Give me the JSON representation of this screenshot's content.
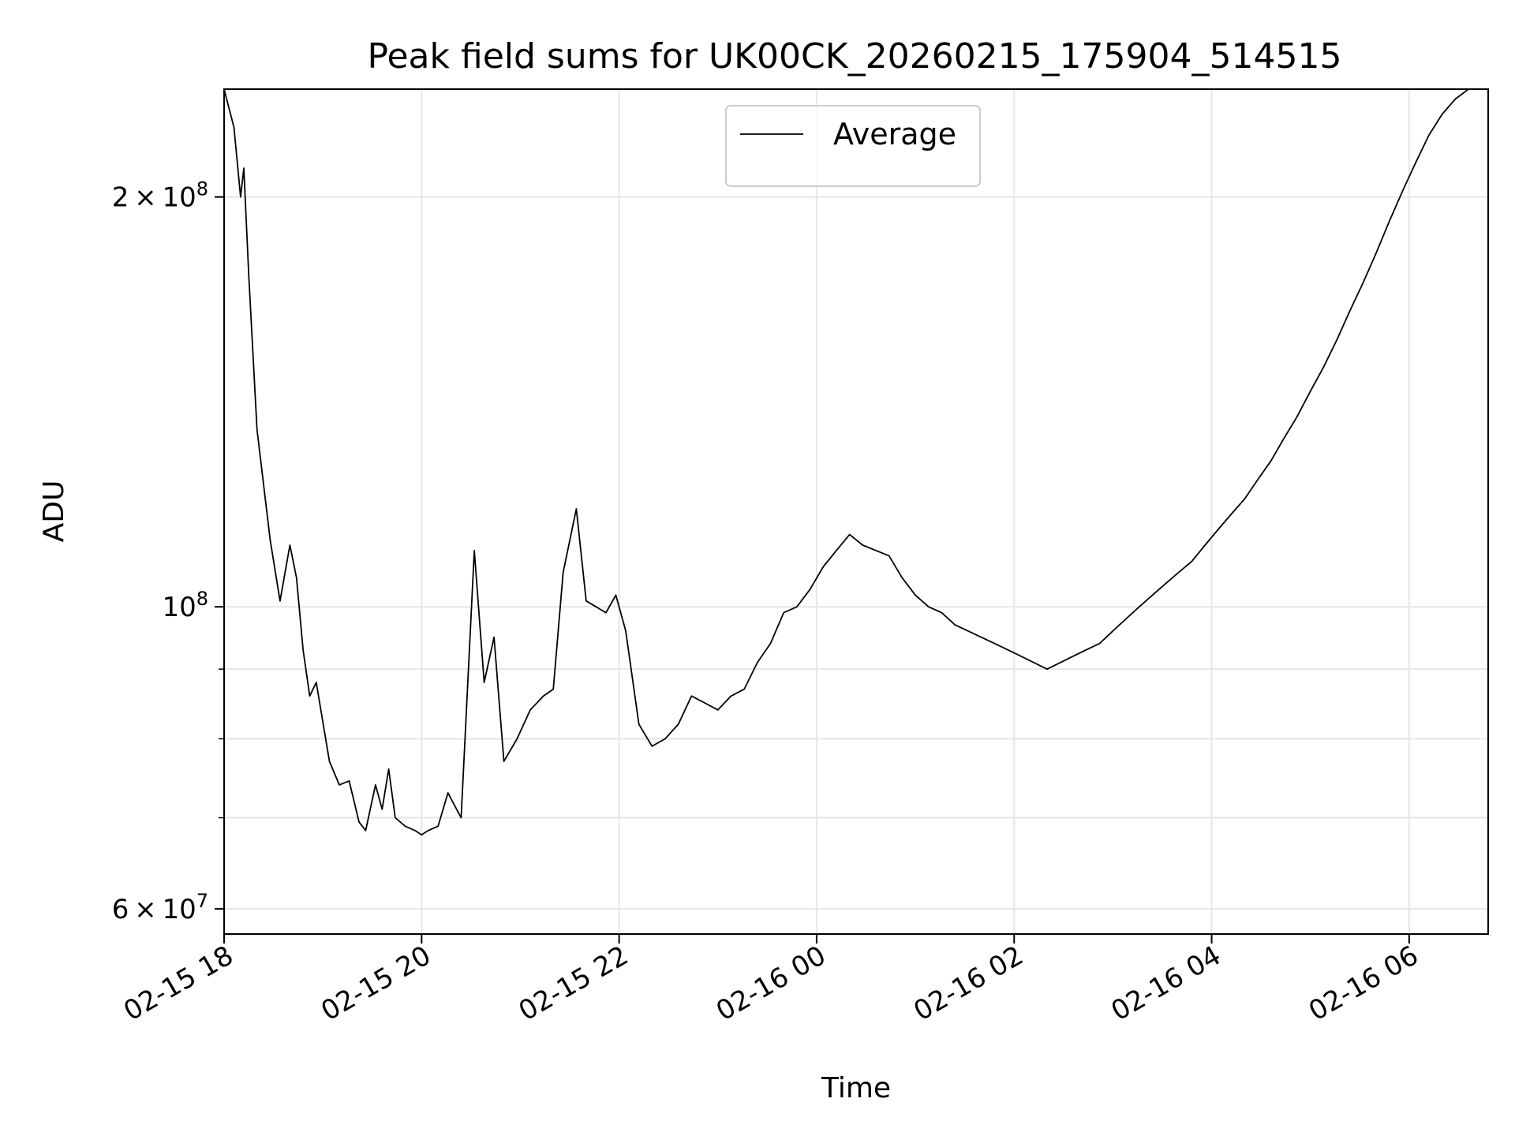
{
  "chart_data": {
    "type": "line",
    "title": "Peak field sums for UK00CK_20260215_175904_514515",
    "xlabel": "Time",
    "ylabel": "ADU",
    "y_scale": "log",
    "ylim": [
      57500000,
      240000000
    ],
    "xlim": [
      "2026-02-15 18:00",
      "2026-02-16 06:48"
    ],
    "grid": true,
    "legend_position": "upper center",
    "x_ticks": [
      {
        "t": "2026-02-15 18:00",
        "label": "02-15 18"
      },
      {
        "t": "2026-02-15 20:00",
        "label": "02-15 20"
      },
      {
        "t": "2026-02-15 22:00",
        "label": "02-15 22"
      },
      {
        "t": "2026-02-16 00:00",
        "label": "02-16 00"
      },
      {
        "t": "2026-02-16 02:00",
        "label": "02-16 02"
      },
      {
        "t": "2026-02-16 04:00",
        "label": "02-16 04"
      },
      {
        "t": "2026-02-16 06:00",
        "label": "02-16 06"
      }
    ],
    "y_ticks_major": [
      {
        "value": 60000000,
        "mantissa": "6",
        "exponent": "7"
      },
      {
        "value": 100000000,
        "mantissa": "",
        "exponent": "8"
      },
      {
        "value": 200000000,
        "mantissa": "2",
        "exponent": "8"
      }
    ],
    "y_ticks_minor": [
      70000000,
      80000000,
      90000000
    ],
    "series": [
      {
        "name": "Average",
        "color": "#000000",
        "points": [
          [
            "2026-02-15 18:00",
            240000000
          ],
          [
            "2026-02-15 18:06",
            225000000
          ],
          [
            "2026-02-15 18:10",
            200000000
          ],
          [
            "2026-02-15 18:12",
            210000000
          ],
          [
            "2026-02-15 18:15",
            175000000
          ],
          [
            "2026-02-15 18:20",
            135000000
          ],
          [
            "2026-02-15 18:28",
            112000000
          ],
          [
            "2026-02-15 18:34",
            101000000
          ],
          [
            "2026-02-15 18:40",
            111000000
          ],
          [
            "2026-02-15 18:44",
            105000000
          ],
          [
            "2026-02-15 18:48",
            93000000
          ],
          [
            "2026-02-15 18:52",
            86000000
          ],
          [
            "2026-02-15 18:56",
            88000000
          ],
          [
            "2026-02-15 19:04",
            77000000
          ],
          [
            "2026-02-15 19:10",
            74000000
          ],
          [
            "2026-02-15 19:16",
            74500000
          ],
          [
            "2026-02-15 19:22",
            69500000
          ],
          [
            "2026-02-15 19:26",
            68500000
          ],
          [
            "2026-02-15 19:32",
            74000000
          ],
          [
            "2026-02-15 19:36",
            71000000
          ],
          [
            "2026-02-15 19:40",
            76000000
          ],
          [
            "2026-02-15 19:44",
            70000000
          ],
          [
            "2026-02-15 19:50",
            69000000
          ],
          [
            "2026-02-15 19:56",
            68500000
          ],
          [
            "2026-02-15 20:00",
            68000000
          ],
          [
            "2026-02-15 20:04",
            68500000
          ],
          [
            "2026-02-15 20:10",
            69000000
          ],
          [
            "2026-02-15 20:16",
            73000000
          ],
          [
            "2026-02-15 20:24",
            70000000
          ],
          [
            "2026-02-15 20:32",
            110000000
          ],
          [
            "2026-02-15 20:38",
            88000000
          ],
          [
            "2026-02-15 20:44",
            95000000
          ],
          [
            "2026-02-15 20:50",
            77000000
          ],
          [
            "2026-02-15 20:58",
            80000000
          ],
          [
            "2026-02-15 21:06",
            84000000
          ],
          [
            "2026-02-15 21:14",
            86000000
          ],
          [
            "2026-02-15 21:20",
            87000000
          ],
          [
            "2026-02-15 21:26",
            106000000
          ],
          [
            "2026-02-15 21:34",
            118000000
          ],
          [
            "2026-02-15 21:40",
            101000000
          ],
          [
            "2026-02-15 21:46",
            100000000
          ],
          [
            "2026-02-15 21:52",
            99000000
          ],
          [
            "2026-02-15 21:58",
            102000000
          ],
          [
            "2026-02-15 22:04",
            96000000
          ],
          [
            "2026-02-15 22:12",
            82000000
          ],
          [
            "2026-02-15 22:20",
            79000000
          ],
          [
            "2026-02-15 22:28",
            80000000
          ],
          [
            "2026-02-15 22:36",
            82000000
          ],
          [
            "2026-02-15 22:44",
            86000000
          ],
          [
            "2026-02-15 22:52",
            85000000
          ],
          [
            "2026-02-15 23:00",
            84000000
          ],
          [
            "2026-02-15 23:08",
            86000000
          ],
          [
            "2026-02-15 23:16",
            87000000
          ],
          [
            "2026-02-15 23:24",
            91000000
          ],
          [
            "2026-02-15 23:32",
            94000000
          ],
          [
            "2026-02-15 23:40",
            99000000
          ],
          [
            "2026-02-15 23:48",
            100000000
          ],
          [
            "2026-02-15 23:56",
            103000000
          ],
          [
            "2026-02-16 00:04",
            107000000
          ],
          [
            "2026-02-16 00:12",
            110000000
          ],
          [
            "2026-02-16 00:20",
            113000000
          ],
          [
            "2026-02-16 00:28",
            111000000
          ],
          [
            "2026-02-16 00:36",
            110000000
          ],
          [
            "2026-02-16 00:44",
            109000000
          ],
          [
            "2026-02-16 00:52",
            105000000
          ],
          [
            "2026-02-16 01:00",
            102000000
          ],
          [
            "2026-02-16 01:08",
            100000000
          ],
          [
            "2026-02-16 01:16",
            99000000
          ],
          [
            "2026-02-16 01:24",
            97000000
          ],
          [
            "2026-02-16 01:32",
            96000000
          ],
          [
            "2026-02-16 01:40",
            95000000
          ],
          [
            "2026-02-16 01:48",
            94000000
          ],
          [
            "2026-02-16 01:56",
            93000000
          ],
          [
            "2026-02-16 02:04",
            92000000
          ],
          [
            "2026-02-16 02:12",
            91000000
          ],
          [
            "2026-02-16 02:20",
            90000000
          ],
          [
            "2026-02-16 02:28",
            91000000
          ],
          [
            "2026-02-16 02:36",
            92000000
          ],
          [
            "2026-02-16 02:44",
            93000000
          ],
          [
            "2026-02-16 02:52",
            94000000
          ],
          [
            "2026-02-16 03:00",
            96000000
          ],
          [
            "2026-02-16 03:08",
            98000000
          ],
          [
            "2026-02-16 03:16",
            100000000
          ],
          [
            "2026-02-16 03:24",
            102000000
          ],
          [
            "2026-02-16 03:32",
            104000000
          ],
          [
            "2026-02-16 03:40",
            106000000
          ],
          [
            "2026-02-16 03:48",
            108000000
          ],
          [
            "2026-02-16 03:56",
            111000000
          ],
          [
            "2026-02-16 04:04",
            114000000
          ],
          [
            "2026-02-16 04:12",
            117000000
          ],
          [
            "2026-02-16 04:20",
            120000000
          ],
          [
            "2026-02-16 04:28",
            124000000
          ],
          [
            "2026-02-16 04:36",
            128000000
          ],
          [
            "2026-02-16 04:44",
            133000000
          ],
          [
            "2026-02-16 04:52",
            138000000
          ],
          [
            "2026-02-16 05:00",
            144000000
          ],
          [
            "2026-02-16 05:08",
            150000000
          ],
          [
            "2026-02-16 05:16",
            157000000
          ],
          [
            "2026-02-16 05:24",
            165000000
          ],
          [
            "2026-02-16 05:32",
            173000000
          ],
          [
            "2026-02-16 05:40",
            182000000
          ],
          [
            "2026-02-16 05:48",
            192000000
          ],
          [
            "2026-02-16 05:56",
            202000000
          ],
          [
            "2026-02-16 06:04",
            212000000
          ],
          [
            "2026-02-16 06:12",
            222000000
          ],
          [
            "2026-02-16 06:20",
            230000000
          ],
          [
            "2026-02-16 06:28",
            236000000
          ],
          [
            "2026-02-16 06:36",
            240000000
          ]
        ]
      }
    ]
  }
}
